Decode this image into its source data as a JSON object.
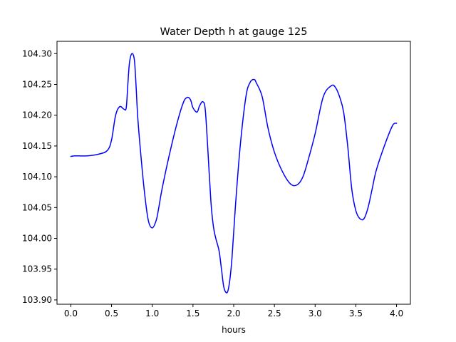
{
  "chart_data": {
    "type": "line",
    "title": "Water Depth h at gauge 125",
    "xlabel": "hours",
    "ylabel": "",
    "xlim": [
      -0.17,
      4.17
    ],
    "ylim": [
      103.893,
      104.32
    ],
    "xticks": [
      "0.0",
      "0.5",
      "1.0",
      "1.5",
      "2.0",
      "2.5",
      "3.0",
      "3.5",
      "4.0"
    ],
    "yticks": [
      "103.90",
      "103.95",
      "104.00",
      "104.05",
      "104.10",
      "104.15",
      "104.20",
      "104.25",
      "104.30"
    ],
    "grid": false,
    "series": [
      {
        "color": "#0000ff",
        "x": [
          0.0,
          0.05,
          0.2,
          0.35,
          0.45,
          0.5,
          0.55,
          0.6,
          0.65,
          0.68,
          0.7,
          0.72,
          0.75,
          0.78,
          0.8,
          0.82,
          0.85,
          0.9,
          0.95,
          1.0,
          1.05,
          1.08,
          1.12,
          1.2,
          1.3,
          1.38,
          1.43,
          1.47,
          1.5,
          1.55,
          1.58,
          1.62,
          1.65,
          1.68,
          1.72,
          1.75,
          1.78,
          1.82,
          1.85,
          1.88,
          1.92,
          1.95,
          1.98,
          2.02,
          2.08,
          2.15,
          2.2,
          2.25,
          2.28,
          2.35,
          2.42,
          2.5,
          2.6,
          2.7,
          2.78,
          2.85,
          2.92,
          3.0,
          3.1,
          3.2,
          3.25,
          3.3,
          3.35,
          3.4,
          3.45,
          3.5,
          3.55,
          3.6,
          3.65,
          3.7,
          3.75,
          3.85,
          3.95,
          4.0
        ],
        "y": [
          104.133,
          104.134,
          104.134,
          104.137,
          104.143,
          104.16,
          104.2,
          104.214,
          104.21,
          104.212,
          104.25,
          104.285,
          104.3,
          104.29,
          104.25,
          104.2,
          104.15,
          104.08,
          104.03,
          104.017,
          104.03,
          104.05,
          104.08,
          104.13,
          104.185,
          104.22,
          104.229,
          104.225,
          104.212,
          104.205,
          104.215,
          104.222,
          104.21,
          104.15,
          104.06,
          104.02,
          104.0,
          103.98,
          103.95,
          103.92,
          103.912,
          103.93,
          103.97,
          104.05,
          104.15,
          104.23,
          104.253,
          104.258,
          104.252,
          104.23,
          104.18,
          104.14,
          104.108,
          104.088,
          104.087,
          104.1,
          104.13,
          104.17,
          104.23,
          104.248,
          104.245,
          104.23,
          104.205,
          104.15,
          104.08,
          104.045,
          104.032,
          104.032,
          104.05,
          104.08,
          104.11,
          104.15,
          104.183,
          104.187
        ]
      }
    ]
  }
}
